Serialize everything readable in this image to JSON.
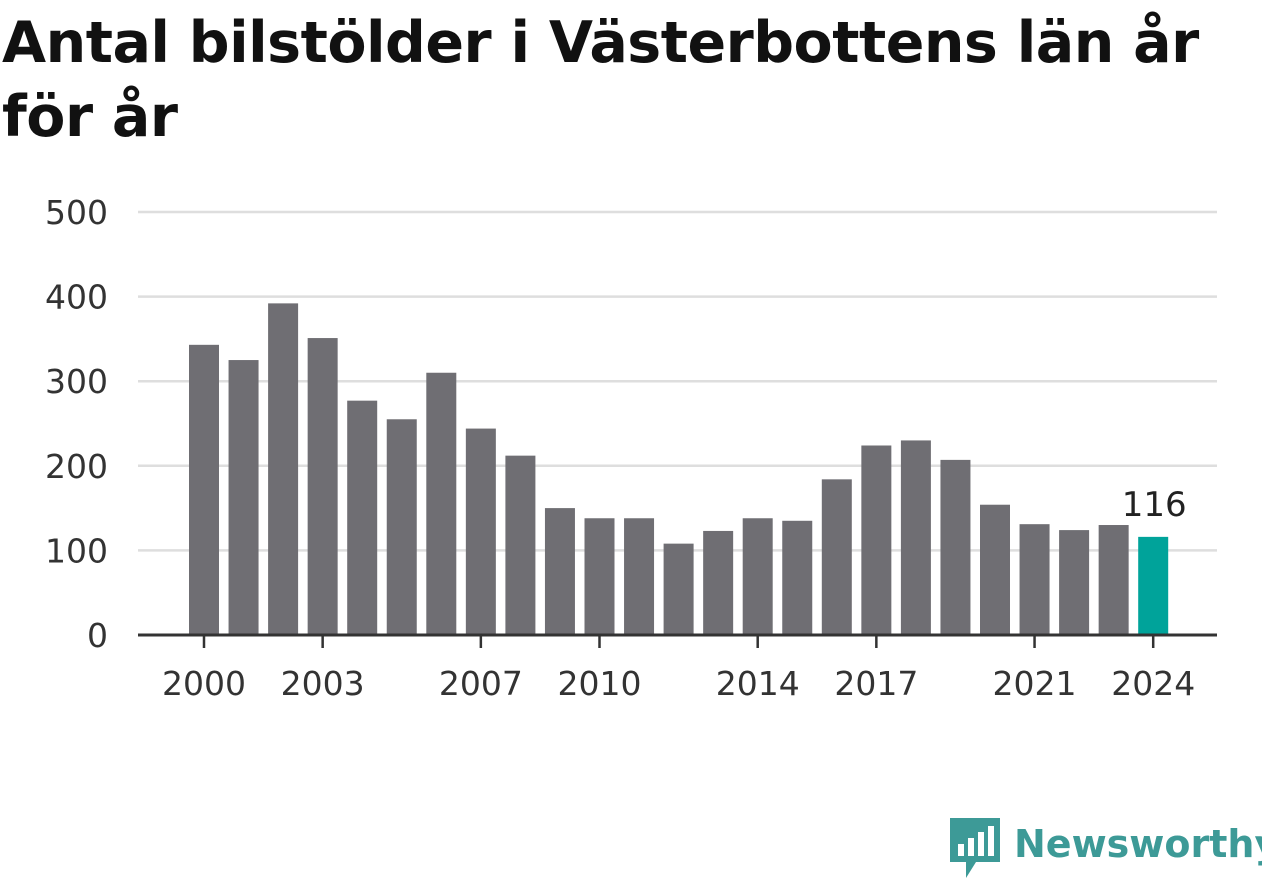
{
  "chart_data": {
    "type": "bar",
    "title": "Antal bilstölder i Västerbottens län år för år",
    "categories": [
      "2000",
      "2001",
      "2002",
      "2003",
      "2004",
      "2005",
      "2006",
      "2007",
      "2008",
      "2009",
      "2010",
      "2011",
      "2012",
      "2013",
      "2014",
      "2015",
      "2016",
      "2017",
      "2018",
      "2019",
      "2020",
      "2021",
      "2022",
      "2023",
      "2024"
    ],
    "values": [
      343,
      325,
      392,
      351,
      277,
      255,
      310,
      244,
      212,
      150,
      138,
      138,
      108,
      123,
      138,
      135,
      184,
      224,
      230,
      207,
      154,
      131,
      124,
      130,
      116
    ],
    "x_tick_labels": [
      "2000",
      "2003",
      "2007",
      "2010",
      "2014",
      "2017",
      "2021",
      "2024"
    ],
    "y_ticks": [
      0,
      100,
      200,
      300,
      400,
      500
    ],
    "ylim": [
      0,
      500
    ],
    "highlight": {
      "category": "2024",
      "label": "116"
    },
    "grid": true,
    "colors": {
      "bar": "#6f6e73",
      "highlight": "#00a39a",
      "grid": "#dedede",
      "axis": "#333333",
      "text": "#333333"
    }
  },
  "brand": {
    "name": "Newsworthy",
    "color": "#3d9a97"
  }
}
